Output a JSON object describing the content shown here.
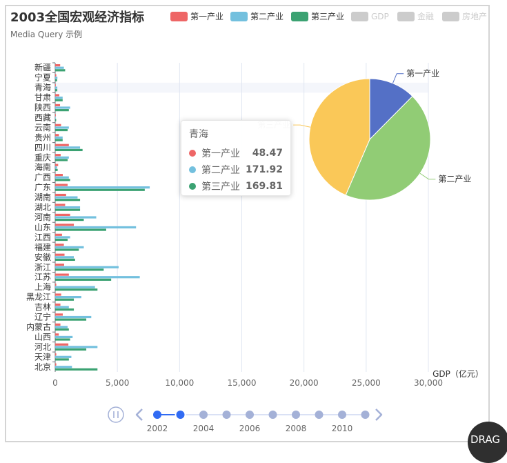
{
  "chart_data": {
    "type": "bar",
    "orientation": "horizontal",
    "title": "2003全国宏观经济指标",
    "subtitle": "Media Query 示例",
    "xlabel": "GDP（亿元）",
    "xlim": [
      0,
      30000
    ],
    "x_ticks": [
      "0",
      "5,000",
      "10,000",
      "15,000",
      "20,000",
      "25,000",
      "30,000"
    ],
    "x_tick_values": [
      0,
      5000,
      10000,
      15000,
      20000,
      25000,
      30000
    ],
    "categories": [
      "北京",
      "天津",
      "河北",
      "山西",
      "内蒙古",
      "辽宁",
      "吉林",
      "黑龙江",
      "上海",
      "江苏",
      "浙江",
      "安徽",
      "福建",
      "江西",
      "山东",
      "河南",
      "湖北",
      "湖南",
      "广东",
      "广西",
      "海南",
      "重庆",
      "四川",
      "贵州",
      "云南",
      "西藏",
      "陕西",
      "甘肃",
      "青海",
      "宁夏",
      "新疆"
    ],
    "highlight_category": "青海",
    "series": [
      {
        "name": "第一产业",
        "color": "#ee6666",
        "values": [
          90,
          90,
          1060,
          290,
          420,
          610,
          420,
          480,
          90,
          1100,
          720,
          750,
          700,
          550,
          1500,
          1200,
          800,
          880,
          1000,
          610,
          240,
          440,
          1100,
          300,
          470,
          50,
          390,
          330,
          48.47,
          90,
          400
        ]
      },
      {
        "name": "第二产业",
        "color": "#73c0de",
        "values": [
          1350,
          1300,
          3400,
          1400,
          1000,
          2900,
          1100,
          2100,
          3200,
          6800,
          5100,
          1500,
          2300,
          1200,
          6500,
          3300,
          2000,
          1800,
          7600,
          1100,
          150,
          1100,
          2000,
          600,
          1100,
          40,
          1200,
          600,
          171.92,
          180,
          700
        ]
      },
      {
        "name": "第三产业",
        "color": "#3ba272",
        "values": [
          3400,
          1100,
          2500,
          1200,
          1100,
          2500,
          1500,
          1500,
          3400,
          4500,
          3900,
          1600,
          1900,
          1000,
          4100,
          2300,
          2000,
          2000,
          7200,
          1200,
          200,
          1000,
          2200,
          600,
          1000,
          80,
          1100,
          600,
          169.81,
          160,
          800
        ]
      }
    ],
    "legend": [
      {
        "name": "第一产业",
        "color": "#ee6666",
        "active": true
      },
      {
        "name": "第二产业",
        "color": "#73c0de",
        "active": true
      },
      {
        "name": "第三产业",
        "color": "#3ba272",
        "active": true
      },
      {
        "name": "GDP",
        "color": "#cccccc",
        "active": false
      },
      {
        "name": "金融",
        "color": "#cccccc",
        "active": false
      },
      {
        "name": "房地产",
        "color": "#cccccc",
        "active": false
      }
    ],
    "pie": {
      "slices": [
        {
          "name": "第一产业",
          "value": 48.47,
          "color": "#5470c6"
        },
        {
          "name": "第二产业",
          "value": 171.92,
          "color": "#91cc75"
        },
        {
          "name": "第三产业",
          "value": 169.81,
          "color": "#fac858"
        }
      ],
      "labels": [
        "第一产业",
        "第二产业",
        "第三产业"
      ]
    },
    "tooltip": {
      "title": "青海",
      "rows": [
        {
          "name": "第一产业",
          "value": "48.47",
          "color": "#ee6666"
        },
        {
          "name": "第二产业",
          "value": "171.92",
          "color": "#73c0de"
        },
        {
          "name": "第三产业",
          "value": "169.81",
          "color": "#3ba272"
        }
      ]
    }
  },
  "timeline": {
    "years": [
      2002,
      2003,
      2004,
      2005,
      2006,
      2007,
      2008,
      2009,
      2010,
      2011
    ],
    "current_index": 1,
    "labels": [
      "2002",
      "2004",
      "2006",
      "2008",
      "2010"
    ],
    "play_icon": "pause-icon",
    "prev_icon": "chevron-left-icon",
    "next_icon": "chevron-right-icon"
  },
  "drag_button": {
    "label": "DRAG"
  }
}
